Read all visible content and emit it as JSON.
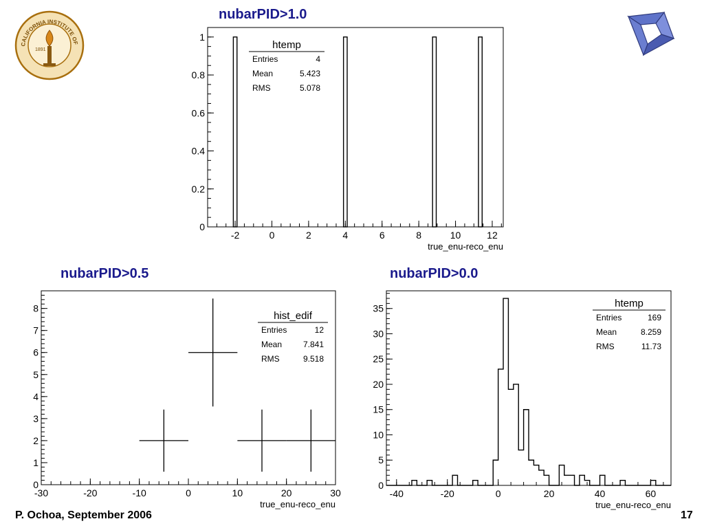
{
  "footer": {
    "author": "P. Ochoa, September 2006",
    "page": "17"
  },
  "logos": {
    "left": {
      "ring_text": "CALIFORNIA INSTITUTE OF TECHNOLOGY",
      "year": "1891"
    }
  },
  "colors": {
    "title": "#1a1a8c",
    "line": "#000000",
    "logo_gold": "#c48a1c",
    "logo_blue": "#4a5bb0"
  },
  "chart_data": [
    {
      "type": "bar",
      "title": "nubarPID>1.0",
      "xlabel": "true_enu-reco_enu",
      "ylabel": "",
      "xlim": [
        -3.5,
        12.6
      ],
      "ylim": [
        0,
        1.05
      ],
      "xticks": [
        -2,
        0,
        2,
        4,
        6,
        8,
        10,
        12
      ],
      "yticks": [
        0,
        0.2,
        0.4,
        0.6,
        0.8,
        1
      ],
      "bins": [
        {
          "x0": -2.1,
          "x1": -1.9,
          "y": 1
        },
        {
          "x0": 3.9,
          "x1": 4.1,
          "y": 1
        },
        {
          "x0": 8.75,
          "x1": 8.95,
          "y": 1
        },
        {
          "x0": 11.25,
          "x1": 11.45,
          "y": 1
        }
      ],
      "stats": {
        "name": "htemp",
        "rows": [
          {
            "label": "Entries",
            "value": "4"
          },
          {
            "label": "Mean",
            "value": "5.423"
          },
          {
            "label": "RMS",
            "value": "5.078"
          }
        ]
      }
    },
    {
      "type": "scatter",
      "title": "nubarPID>0.5",
      "xlabel": "true_enu-reco_enu",
      "ylabel": "",
      "xlim": [
        -30,
        30
      ],
      "ylim": [
        0,
        8.8
      ],
      "xticks": [
        -30,
        -20,
        -10,
        0,
        10,
        20,
        30
      ],
      "yticks": [
        0,
        1,
        2,
        3,
        4,
        5,
        6,
        7,
        8
      ],
      "points": [
        {
          "x": -5,
          "y": 2,
          "xerr": 5,
          "yerr": 1.41
        },
        {
          "x": 5,
          "y": 6,
          "xerr": 5,
          "yerr": 2.45
        },
        {
          "x": 15,
          "y": 2,
          "xerr": 5,
          "yerr": 1.41
        },
        {
          "x": 25,
          "y": 2,
          "xerr": 5,
          "yerr": 1.41
        }
      ],
      "stats": {
        "name": "hist_edif",
        "rows": [
          {
            "label": "Entries",
            "value": "12"
          },
          {
            "label": "Mean",
            "value": "7.841"
          },
          {
            "label": "RMS",
            "value": "9.518"
          }
        ]
      }
    },
    {
      "type": "line",
      "title": "nubarPID>0.0",
      "xlabel": "true_enu-reco_enu",
      "ylabel": "",
      "xlim": [
        -44,
        68
      ],
      "ylim": [
        0,
        38.5
      ],
      "xticks": [
        -40,
        -20,
        0,
        20,
        40,
        60
      ],
      "yticks": [
        0,
        5,
        10,
        15,
        20,
        25,
        30,
        35
      ],
      "bin_edges": [
        -44,
        -42,
        -40,
        -38,
        -36,
        -34,
        -32,
        -30,
        -28,
        -26,
        -24,
        -22,
        -20,
        -18,
        -16,
        -14,
        -12,
        -10,
        -8,
        -6,
        -4,
        -2,
        0,
        2,
        4,
        6,
        8,
        10,
        12,
        14,
        16,
        18,
        20,
        22,
        24,
        26,
        28,
        30,
        32,
        34,
        36,
        38,
        40,
        42,
        44,
        46,
        48,
        50,
        52,
        54,
        56,
        58,
        60,
        62,
        64,
        66,
        68
      ],
      "values": [
        0,
        0,
        0,
        0,
        0,
        1,
        0,
        0,
        1,
        0,
        0,
        0,
        0,
        2,
        0,
        0,
        0,
        1,
        0,
        0,
        0,
        5,
        23,
        37,
        19,
        20,
        7,
        15,
        5,
        4,
        3,
        2,
        0,
        0,
        4,
        2,
        2,
        0,
        2,
        1,
        0,
        0,
        2,
        0,
        0,
        0,
        1,
        0,
        0,
        0,
        0,
        0,
        1,
        0,
        0,
        0
      ],
      "stats": {
        "name": "htemp",
        "rows": [
          {
            "label": "Entries",
            "value": "169"
          },
          {
            "label": "Mean",
            "value": "8.259"
          },
          {
            "label": "RMS",
            "value": "11.73"
          }
        ]
      }
    }
  ]
}
